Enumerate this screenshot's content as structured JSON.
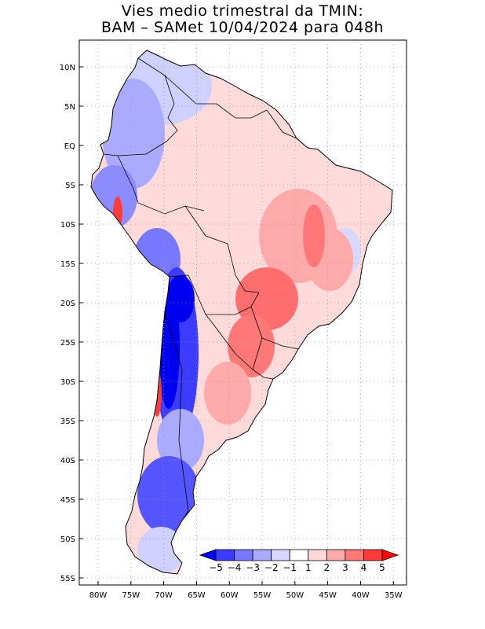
{
  "title": {
    "line1": "Vies medio trimestral da TMIN:",
    "line2": "BAM – SAMet 10/04/2024  para 048h"
  },
  "lat_labels": [
    "10N",
    "5N",
    "EQ",
    "5S",
    "10S",
    "15S",
    "20S",
    "25S",
    "30S",
    "35S",
    "40S",
    "45S",
    "50S",
    "55S"
  ],
  "lon_labels": [
    "80W",
    "75W",
    "70W",
    "65W",
    "60W",
    "55W",
    "50W",
    "45W",
    "40W",
    "35W"
  ],
  "colorbar": {
    "labels": [
      "−5",
      "−4",
      "−3",
      "−2",
      "−1",
      "1",
      "2",
      "3",
      "4",
      "5"
    ],
    "colors": [
      "#0000ff",
      "#3c3cff",
      "#7878ff",
      "#aaaaff",
      "#d8d8ff",
      "#ffffff",
      "#ffd8d8",
      "#ffaaaa",
      "#ff7878",
      "#ff3c3c",
      "#ff0000"
    ]
  },
  "colors": {
    "land_base": "#ffdada",
    "warm_medium": "#ffaaaa",
    "warm_strong": "#ff6e6e",
    "cold_light": "#d0d0ff",
    "cold_medium": "#8c8cff",
    "cold_strong": "#0000f0",
    "grid": "#999999",
    "coast": "#000000"
  }
}
